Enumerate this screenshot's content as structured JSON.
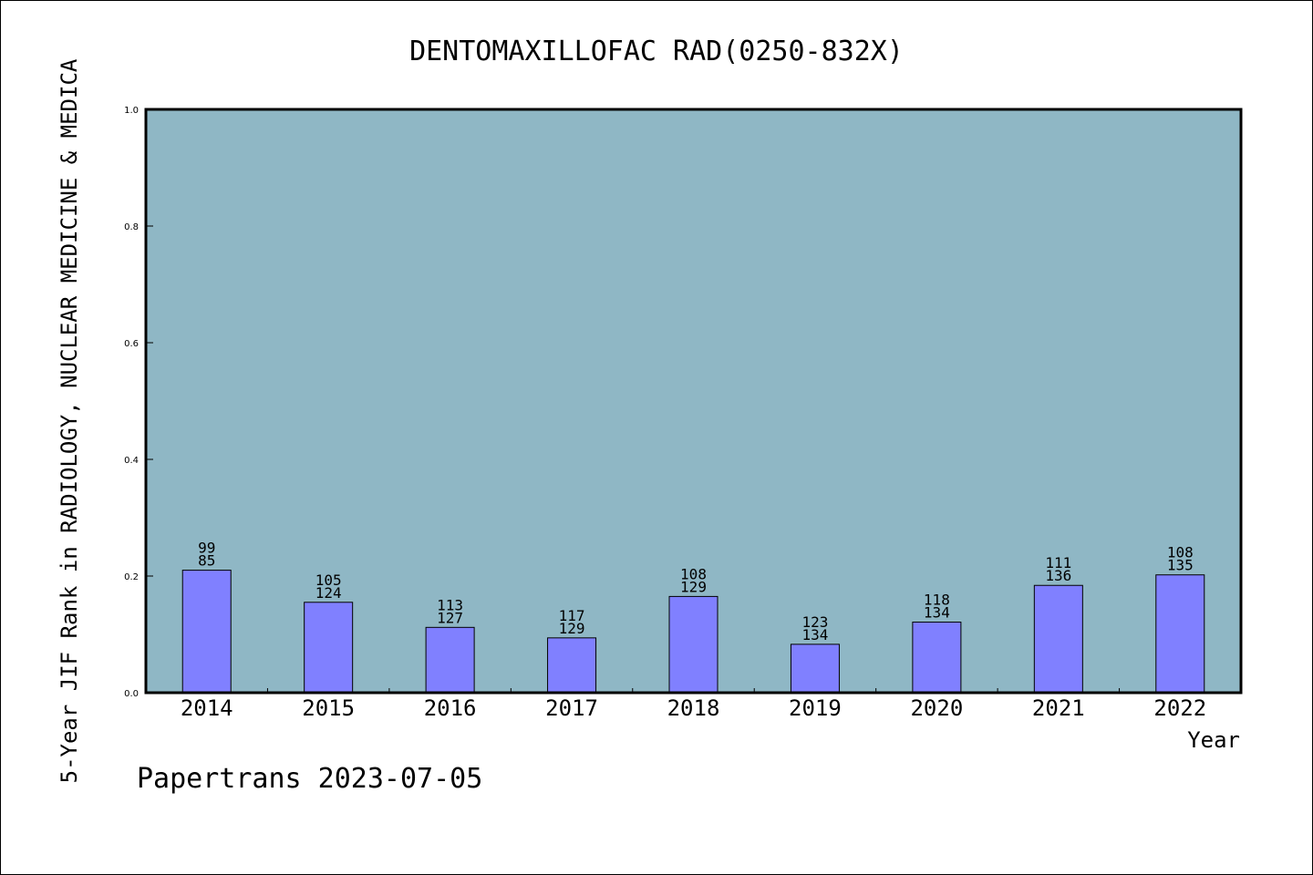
{
  "chart_data": {
    "type": "bar",
    "title": "DENTOMAXILLOFAC RAD(0250-832X)",
    "xlabel": "Year",
    "ylabel": "5-Year JIF Rank in RADIOLOGY, NUCLEAR MEDICINE & MEDICA",
    "ylim": [
      0,
      1.0
    ],
    "yticks": [
      "0.0",
      "0.2",
      "0.4",
      "0.6",
      "0.8",
      "1.0"
    ],
    "grid": false,
    "categories": [
      "2014",
      "2015",
      "2016",
      "2017",
      "2018",
      "2019",
      "2020",
      "2021",
      "2022"
    ],
    "values": [
      0.21,
      0.155,
      0.112,
      0.094,
      0.165,
      0.083,
      0.121,
      0.184,
      0.202
    ],
    "labels_top": [
      "99",
      "105",
      "113",
      "117",
      "108",
      "123",
      "118",
      "111",
      "108"
    ],
    "labels_bottom": [
      "85",
      "124",
      "127",
      "129",
      "129",
      "134",
      "134",
      "136",
      "135"
    ],
    "colors": {
      "plot_bg": "#8fb7c5",
      "bar": "#8080ff",
      "bar_edge": "#000000"
    }
  },
  "footer": "Papertrans 2023-07-05"
}
